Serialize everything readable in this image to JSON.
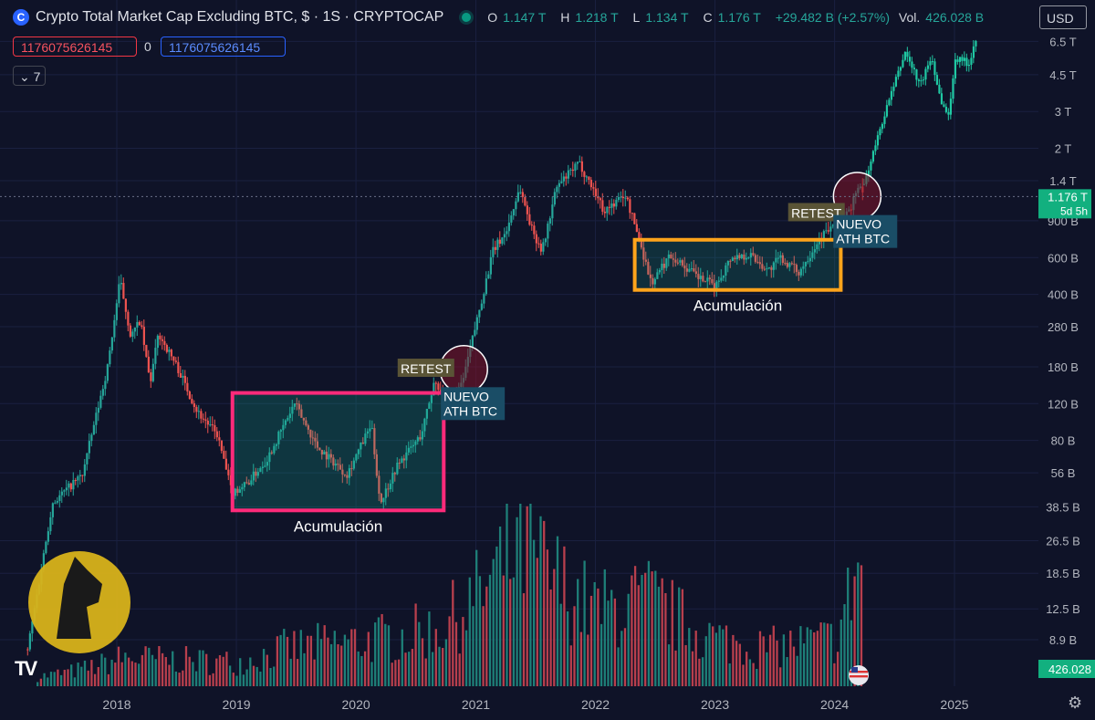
{
  "header": {
    "logo_char": "C",
    "title": "Crypto Total Market Cap Excluding BTC, $ · 1S · CRYPTOCAP",
    "ohlc": {
      "o_label": "O",
      "o": "1.147 T",
      "h_label": "H",
      "h": "1.218 T",
      "l_label": "L",
      "l": "1.134 T",
      "c_label": "C",
      "c": "1.176 T",
      "change": "+29.482 B (+2.57%)",
      "vol_label": "Vol.",
      "vol": "426.028 B"
    },
    "currency": "USD"
  },
  "price_inputs": {
    "sell": "1176075626145",
    "mid": "0",
    "buy": "1176075626145"
  },
  "collapse_count": "7",
  "icons": {
    "settings": "gear-icon",
    "tradingview": "tradingview-logo",
    "flag": "us-flag-icon",
    "watermark": "anubis-logo"
  },
  "colors": {
    "up": "#26a69a",
    "down": "#ef5350",
    "vol_up": "#1e7f78",
    "vol_down": "#b83f4d",
    "pink_box": "#ff2a7a",
    "orange_box": "#ffa41b",
    "bg": "#0f1328"
  },
  "chart_data": {
    "type": "candlestick",
    "y_scale": "log",
    "y_tick_labels": [
      "6.5 T",
      "4.5 T",
      "3 T",
      "2 T",
      "1.4 T",
      "900 B",
      "600 B",
      "400 B",
      "280 B",
      "180 B",
      "120 B",
      "80 B",
      "56 B",
      "38.5 B",
      "26.5 B",
      "18.5 B",
      "12.5 B",
      "8.9 B"
    ],
    "y_tick_values": [
      6500,
      4500,
      3000,
      2000,
      1400,
      900,
      600,
      400,
      280,
      180,
      120,
      80,
      56,
      38.5,
      26.5,
      18.5,
      12.5,
      8.9
    ],
    "x_tick_labels": [
      "2018",
      "2019",
      "2020",
      "2021",
      "2022",
      "2023",
      "2024",
      "2025"
    ],
    "last_price_label": "1.176 T",
    "countdown_label": "5d 5h",
    "last_volume_label": "426.028",
    "series_path_billions": [
      [
        "2017-04-01",
        8
      ],
      [
        "2017-06-15",
        40
      ],
      [
        "2017-09-15",
        55
      ],
      [
        "2017-12-01",
        180
      ],
      [
        "2018-01-08",
        470
      ],
      [
        "2018-02-10",
        250
      ],
      [
        "2018-03-10",
        300
      ],
      [
        "2018-04-10",
        150
      ],
      [
        "2018-05-05",
        260
      ],
      [
        "2018-07-01",
        180
      ],
      [
        "2018-09-01",
        110
      ],
      [
        "2018-11-01",
        85
      ],
      [
        "2018-12-15",
        45
      ],
      [
        "2019-02-01",
        50
      ],
      [
        "2019-04-01",
        65
      ],
      [
        "2019-06-25",
        120
      ],
      [
        "2019-09-01",
        75
      ],
      [
        "2019-12-01",
        55
      ],
      [
        "2020-02-14",
        95
      ],
      [
        "2020-03-12",
        40
      ],
      [
        "2020-05-01",
        60
      ],
      [
        "2020-07-15",
        85
      ],
      [
        "2020-08-25",
        155
      ],
      [
        "2020-10-01",
        125
      ],
      [
        "2020-11-15",
        145
      ],
      [
        "2021-01-01",
        300
      ],
      [
        "2021-02-20",
        650
      ],
      [
        "2021-04-01",
        800
      ],
      [
        "2021-05-12",
        1300
      ],
      [
        "2021-06-20",
        800
      ],
      [
        "2021-07-20",
        650
      ],
      [
        "2021-09-01",
        1300
      ],
      [
        "2021-11-09",
        1700
      ],
      [
        "2022-01-01",
        1200
      ],
      [
        "2022-01-24",
        1000
      ],
      [
        "2022-03-30",
        1200
      ],
      [
        "2022-05-10",
        750
      ],
      [
        "2022-06-18",
        450
      ],
      [
        "2022-08-14",
        620
      ],
      [
        "2022-11-09",
        480
      ],
      [
        "2023-01-01",
        440
      ],
      [
        "2023-02-15",
        600
      ],
      [
        "2023-04-15",
        620
      ],
      [
        "2023-06-10",
        520
      ],
      [
        "2023-07-15",
        600
      ],
      [
        "2023-09-11",
        510
      ],
      [
        "2023-11-15",
        750
      ],
      [
        "2024-01-10",
        900
      ],
      [
        "2024-02-15",
        1000
      ],
      [
        "2024-03-05",
        1300
      ],
      [
        "2024-04-01",
        1200
      ]
    ],
    "series_path_extension_billions": [
      [
        "2024-03-25",
        1300
      ],
      [
        "2024-06-01",
        3000
      ],
      [
        "2024-08-01",
        5800
      ],
      [
        "2024-09-15",
        4000
      ],
      [
        "2024-10-20",
        5500
      ],
      [
        "2024-11-15",
        3500
      ],
      [
        "2024-12-10",
        2800
      ],
      [
        "2024-12-30",
        5200
      ],
      [
        "2025-01-15",
        5500
      ],
      [
        "2025-02-10",
        5000
      ],
      [
        "2025-03-01",
        6500
      ],
      [
        "2025-03-10",
        7200
      ]
    ],
    "volume_profile_billions": [
      [
        "2017-05-01",
        2
      ],
      [
        "2018-01-15",
        6
      ],
      [
        "2019-01-01",
        5
      ],
      [
        "2019-06-01",
        8
      ],
      [
        "2020-03-15",
        10
      ],
      [
        "2020-09-01",
        12
      ],
      [
        "2021-01-15",
        20
      ],
      [
        "2021-05-15",
        30
      ],
      [
        "2021-09-01",
        22
      ],
      [
        "2022-01-01",
        16
      ],
      [
        "2022-06-15",
        18
      ],
      [
        "2023-01-01",
        10
      ],
      [
        "2023-06-01",
        8
      ],
      [
        "2024-01-01",
        10
      ],
      [
        "2024-03-01",
        25
      ]
    ],
    "annotations": [
      {
        "type": "rect",
        "name": "accumulation-box-1",
        "label": "Acumulación",
        "x0": "2018-12-20",
        "x1": "2020-09-25",
        "y0": 37,
        "y1": 135,
        "color": "#ff2a7a"
      },
      {
        "type": "rect",
        "name": "accumulation-box-2",
        "label": "Acumulación",
        "x0": "2022-05-01",
        "x1": "2024-01-20",
        "y0": 420,
        "y1": 730,
        "color": "#ffa41b"
      },
      {
        "type": "circle",
        "name": "ath-circle-1",
        "x": "2020-11-25",
        "y": 175
      },
      {
        "type": "circle",
        "name": "ath-circle-2",
        "x": "2024-03-10",
        "y": 1180
      },
      {
        "type": "label",
        "name": "retest-label-1",
        "text": "RETEST",
        "x": "2020-08-10",
        "y": 180
      },
      {
        "type": "label",
        "name": "retest-label-2",
        "text": "RETEST",
        "x": "2023-11-15",
        "y": 1000
      },
      {
        "type": "label",
        "name": "nuevo-ath-label-1",
        "lines": [
          "NUEVO",
          "ATH BTC"
        ],
        "x": "2020-12-20",
        "y": 120
      },
      {
        "type": "label",
        "name": "nuevo-ath-label-2",
        "lines": [
          "NUEVO",
          "ATH BTC"
        ],
        "x": "2024-04-01",
        "y": 800
      }
    ]
  }
}
